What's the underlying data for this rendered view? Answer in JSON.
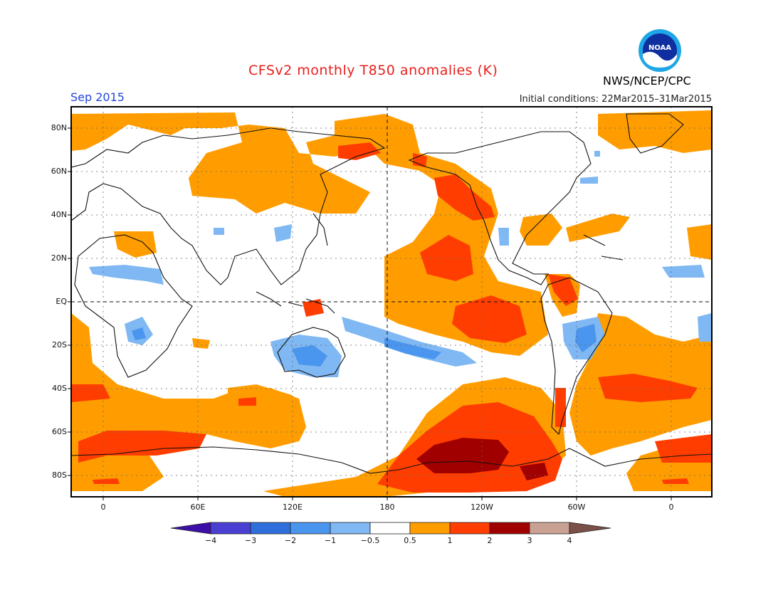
{
  "header": {
    "title": "CFSv2 monthly T850 anomalies (K)",
    "month": "Sep 2015",
    "initial_conditions": "Initial conditions: 22Mar2015–31Mar2015",
    "agency": "NWS/NCEP/CPC",
    "logo_text": "NOAA"
  },
  "map": {
    "lat_labels": [
      "80N",
      "60N",
      "40N",
      "20N",
      "EQ",
      "20S",
      "40S",
      "60S",
      "80S"
    ],
    "lon_labels": [
      "0",
      "60E",
      "120E",
      "180",
      "120W",
      "60W",
      "0"
    ],
    "projection": "cylindrical equidistant, centered on 180",
    "reference_lines": [
      "equator (dashed)",
      "180 meridian (dashed)"
    ]
  },
  "colorbar": {
    "tick_labels": [
      "−4",
      "−3",
      "−2",
      "−1",
      "−0.5",
      "0.5",
      "1",
      "2",
      "3",
      "4"
    ],
    "bins": [
      {
        "color": "#3d0fa8"
      },
      {
        "color": "#4a3fd3"
      },
      {
        "color": "#2f6fdb"
      },
      {
        "color": "#4a95ee"
      },
      {
        "color": "#7fb8f2"
      },
      {
        "color": "#ffffff"
      },
      {
        "color": "#ff9d00"
      },
      {
        "color": "#ff3d00"
      },
      {
        "color": "#a10000"
      },
      {
        "color": "#c9a193"
      },
      {
        "color": "#7a5048"
      }
    ]
  }
}
